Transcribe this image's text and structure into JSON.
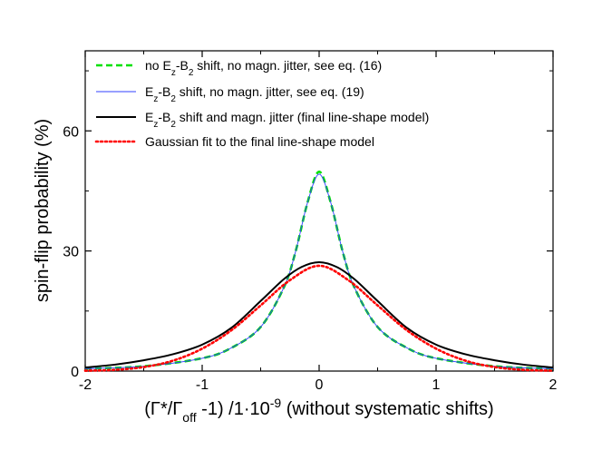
{
  "chart_data": {
    "type": "line",
    "xlabel_parts": [
      "(Γ*/Γ",
      "off",
      " -1) /1·10",
      "-9",
      " (without systematic shifts)"
    ],
    "ylabel": "spin-flip probability (%)",
    "xlim": [
      -2,
      2
    ],
    "ylim": [
      0,
      80
    ],
    "xticks": [
      -2,
      -1,
      0,
      1,
      2
    ],
    "yticks": [
      0,
      30,
      60
    ],
    "grid": false,
    "legend_position": "top-left",
    "legend_rows": [
      [
        "no E",
        "z",
        "-B",
        "2",
        " shift, no magn. jitter, see eq. (16)"
      ],
      [
        "E",
        "z",
        "-B",
        "2",
        " shift, no magn. jitter, see eq. (19)"
      ],
      [
        "E",
        "z",
        "-B",
        "2",
        " shift and magn. jitter (final line-shape model)"
      ],
      [
        "Gaussian fit to the final line-shape model"
      ]
    ],
    "series": [
      {
        "color": "#00e000",
        "style": "dashed",
        "x": [
          -2.0,
          -1.5,
          -1.0,
          -0.75,
          -0.5,
          -0.3,
          -0.2,
          -0.1,
          0.0,
          0.1,
          0.2,
          0.3,
          0.5,
          0.75,
          1.0,
          1.5,
          2.0
        ],
        "values": [
          0.6,
          1.2,
          3.2,
          5.8,
          11.0,
          21.0,
          30.0,
          42.0,
          49.8,
          42.0,
          30.0,
          21.0,
          11.0,
          5.8,
          3.2,
          1.2,
          0.6
        ]
      },
      {
        "color": "#3040ff",
        "style": "solid",
        "x": [
          -2.0,
          -1.5,
          -1.0,
          -0.75,
          -0.5,
          -0.3,
          -0.2,
          -0.1,
          0.0,
          0.1,
          0.2,
          0.3,
          0.5,
          0.75,
          1.0,
          1.5,
          2.0
        ],
        "values": [
          0.6,
          1.2,
          3.2,
          5.8,
          11.0,
          21.0,
          30.0,
          42.0,
          49.2,
          42.0,
          30.0,
          21.0,
          11.0,
          5.8,
          3.2,
          1.2,
          0.6
        ]
      },
      {
        "color": "#000000",
        "style": "solid",
        "x": [
          -2.0,
          -1.75,
          -1.5,
          -1.25,
          -1.0,
          -0.75,
          -0.5,
          -0.3,
          -0.15,
          0.0,
          0.15,
          0.3,
          0.5,
          0.75,
          1.0,
          1.25,
          1.5,
          1.75,
          2.0
        ],
        "values": [
          0.9,
          1.6,
          2.7,
          4.2,
          6.6,
          10.8,
          17.5,
          23.0,
          26.0,
          27.2,
          26.0,
          23.0,
          17.5,
          10.8,
          6.6,
          4.2,
          2.7,
          1.6,
          0.9
        ]
      },
      {
        "color": "#ff0000",
        "style": "dotted",
        "x": [
          -2.0,
          -1.75,
          -1.5,
          -1.25,
          -1.0,
          -0.75,
          -0.5,
          -0.25,
          0.0,
          0.25,
          0.5,
          0.75,
          1.0,
          1.25,
          1.5,
          1.75,
          2.0
        ],
        "values": [
          0.1,
          0.3,
          1.0,
          2.6,
          5.6,
          10.2,
          16.4,
          22.7,
          26.3,
          22.7,
          16.4,
          10.2,
          5.6,
          2.6,
          1.0,
          0.3,
          0.1
        ]
      }
    ]
  }
}
